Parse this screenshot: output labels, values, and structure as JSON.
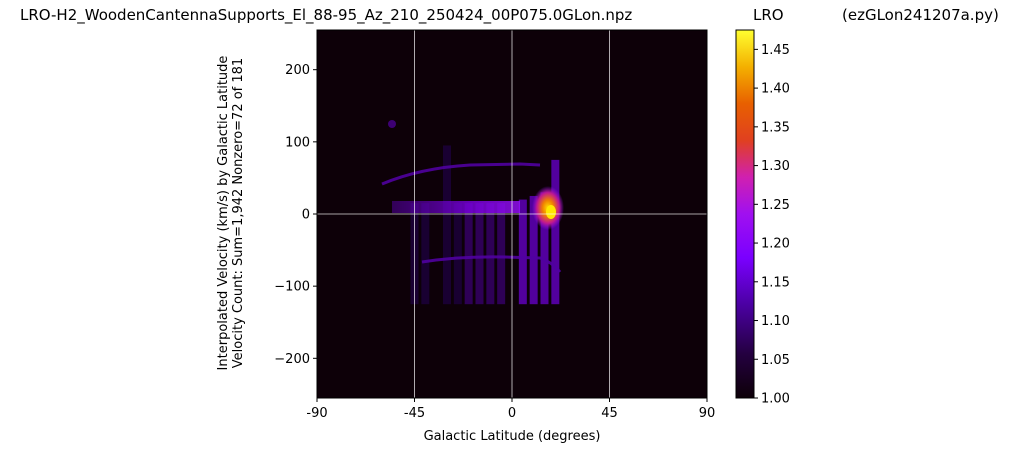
{
  "title_left": "LRO-H2_WoodenCantennaSupports_El_88-95_Az_210_250424_00P075.0GLon.npz",
  "title_middle": "LRO",
  "title_right": "(ezGLon241207a.py)",
  "chart_data": {
    "type": "heatmap",
    "xlabel": "Galactic Latitude (degrees)",
    "ylabel_line1": "Interpolated Velocity (km/s) by Galactic Latitude",
    "ylabel_line2": "Velocity Count: Sum=1,942 Nonzero=72 of 181",
    "xlim": [
      -90,
      90
    ],
    "ylim": [
      -255,
      255
    ],
    "xticks": [
      -90,
      -45,
      0,
      45,
      90
    ],
    "xtick_labels": [
      "-90",
      "-45",
      "0",
      "45",
      "90"
    ],
    "yticks": [
      200,
      100,
      0,
      -100,
      -200
    ],
    "ytick_labels": [
      "200",
      "100",
      "0",
      "−100",
      "−200"
    ],
    "grid": true,
    "colormap": "gnuplot",
    "colorbar": {
      "min": 1.0,
      "max": 1.475,
      "ticks": [
        1.45,
        1.4,
        1.35,
        1.3,
        1.25,
        1.2,
        1.15,
        1.1,
        1.05,
        1.0
      ],
      "tick_labels": [
        "1.45",
        "1.40",
        "1.35",
        "1.30",
        "1.25",
        "1.20",
        "1.15",
        "1.10",
        "1.05",
        "1.00"
      ]
    },
    "colors": [
      "#0d0008",
      "#1e0040",
      "#3a0070",
      "#6a00d0",
      "#8a10f0",
      "#c020c0",
      "#e04020",
      "#f09000",
      "#ffe000",
      "#ffff40"
    ],
    "vertical_strips": [
      {
        "x": -45,
        "vmin": -125,
        "vmax": 15,
        "intensity": 1.02
      },
      {
        "x": -40,
        "vmin": -125,
        "vmax": 15,
        "intensity": 1.02
      },
      {
        "x": -30,
        "vmin": -125,
        "vmax": 95,
        "intensity": 1.03
      },
      {
        "x": -25,
        "vmin": -125,
        "vmax": 15,
        "intensity": 1.03
      },
      {
        "x": -20,
        "vmin": -125,
        "vmax": 15,
        "intensity": 1.04
      },
      {
        "x": -15,
        "vmin": -125,
        "vmax": 15,
        "intensity": 1.04
      },
      {
        "x": -10,
        "vmin": -125,
        "vmax": 15,
        "intensity": 1.05
      },
      {
        "x": -5,
        "vmin": -125,
        "vmax": 15,
        "intensity": 1.05
      },
      {
        "x": 5,
        "vmin": -125,
        "vmax": 20,
        "intensity": 1.07
      },
      {
        "x": 10,
        "vmin": -125,
        "vmax": 25,
        "intensity": 1.07
      },
      {
        "x": 15,
        "vmin": -125,
        "vmax": 30,
        "intensity": 1.08
      },
      {
        "x": 20,
        "vmin": -125,
        "vmax": 75,
        "intensity": 1.08
      }
    ]
  }
}
